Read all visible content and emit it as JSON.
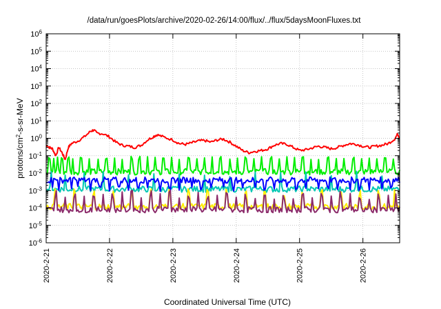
{
  "chart_data": {
    "type": "line",
    "title": "/data/run/goesPlots/archive/2020-02-26/14:00/flux/../flux/5daysMoonFluxes.txt",
    "xlabel": "Coordinated Universal Time (UTC)",
    "ylabel": "protons/cm²-s-sr-MeV",
    "ylabel_parts": {
      "pre": "protons/cm",
      "sup": "2",
      "post": "-s-sr-MeV"
    },
    "yscale": "log",
    "ylim_exponents": [
      -6,
      6
    ],
    "ytick_exponents": [
      6,
      5,
      4,
      3,
      2,
      1,
      0,
      -1,
      -2,
      -3,
      -4,
      -5,
      -6
    ],
    "ytick_base": "10",
    "xlim": [
      "2020-02-21",
      "2020-02-26 14:00"
    ],
    "xticks": [
      "2020-2-21",
      "2020-2-22",
      "2020-2-23",
      "2020-2-24",
      "2020-2-25",
      "2020-2-26"
    ],
    "grid": true,
    "series": [
      {
        "color": "#ff0000",
        "width": 2,
        "values": [
          [
            0,
            0.4
          ],
          [
            0.05,
            0.3
          ],
          [
            0.1,
            0.25
          ],
          [
            0.15,
            0.1
          ],
          [
            0.2,
            0.3
          ],
          [
            0.25,
            0.15
          ],
          [
            0.3,
            0.06
          ],
          [
            0.35,
            0.3
          ],
          [
            0.4,
            0.5
          ],
          [
            0.5,
            0.7
          ],
          [
            0.6,
            1.2
          ],
          [
            0.7,
            2.5
          ],
          [
            0.75,
            3.0
          ],
          [
            0.8,
            2.0
          ],
          [
            0.9,
            1.8
          ],
          [
            1.0,
            1.2
          ],
          [
            1.1,
            0.6
          ],
          [
            1.2,
            0.4
          ],
          [
            1.3,
            0.35
          ],
          [
            1.4,
            0.3
          ],
          [
            1.5,
            0.4
          ],
          [
            1.6,
            0.8
          ],
          [
            1.7,
            1.3
          ],
          [
            1.75,
            1.6
          ],
          [
            1.85,
            1.2
          ],
          [
            2.0,
            0.8
          ],
          [
            2.1,
            0.5
          ],
          [
            2.2,
            0.45
          ],
          [
            2.3,
            0.55
          ],
          [
            2.4,
            0.7
          ],
          [
            2.5,
            0.75
          ],
          [
            2.6,
            0.6
          ],
          [
            2.7,
            0.8
          ],
          [
            2.8,
            0.9
          ],
          [
            2.9,
            0.6
          ],
          [
            3.0,
            0.35
          ],
          [
            3.1,
            0.2
          ],
          [
            3.2,
            0.15
          ],
          [
            3.3,
            0.18
          ],
          [
            3.4,
            0.2
          ],
          [
            3.5,
            0.25
          ],
          [
            3.6,
            0.4
          ],
          [
            3.7,
            0.5
          ],
          [
            3.8,
            0.45
          ],
          [
            3.9,
            0.3
          ],
          [
            4.0,
            0.2
          ],
          [
            4.1,
            0.22
          ],
          [
            4.2,
            0.28
          ],
          [
            4.3,
            0.35
          ],
          [
            4.4,
            0.3
          ],
          [
            4.5,
            0.25
          ],
          [
            4.6,
            0.3
          ],
          [
            4.7,
            0.4
          ],
          [
            4.8,
            0.5
          ],
          [
            4.9,
            0.45
          ],
          [
            5.0,
            0.35
          ],
          [
            5.1,
            0.3
          ],
          [
            5.2,
            0.35
          ],
          [
            5.3,
            0.4
          ],
          [
            5.4,
            0.5
          ],
          [
            5.5,
            0.9
          ],
          [
            5.55,
            1.8
          ],
          [
            5.58,
            1.0
          ]
        ]
      },
      {
        "color": "#00ee00",
        "width": 2,
        "baseline": 0.012,
        "spikes": [
          0.05,
          0.12,
          0.18,
          0.25,
          0.35,
          0.42,
          0.55,
          0.68,
          0.82,
          0.95,
          1.08,
          1.2,
          1.35,
          1.47,
          1.6,
          1.72,
          1.85,
          1.98,
          2.1,
          2.25,
          2.38,
          2.5,
          2.62,
          2.75,
          2.9,
          3.02,
          3.15,
          3.28,
          3.4,
          3.55,
          3.68,
          3.8,
          3.92,
          4.05,
          4.18,
          4.3,
          4.45,
          4.58,
          4.7,
          4.85,
          4.98,
          5.1,
          5.22,
          5.35,
          5.48
        ],
        "spike": 0.06
      },
      {
        "color": "#00c8b4",
        "width": 2,
        "baseline": 0.0012,
        "spikes": [
          0.08,
          0.3,
          0.6,
          0.9,
          1.3,
          1.7,
          2.1,
          2.5,
          2.9,
          3.3,
          3.7,
          4.1,
          4.5,
          4.9,
          5.3
        ],
        "spike": 0.006
      },
      {
        "color": "#0000ff",
        "width": 2,
        "baseline": 0.004,
        "spikes": [
          0.1,
          0.2,
          0.4,
          0.5,
          0.7,
          0.85,
          1.0,
          1.15,
          1.3,
          1.45,
          1.6,
          1.8,
          1.95,
          2.1,
          2.3,
          2.45,
          2.6,
          2.8,
          2.95,
          3.1,
          3.3,
          3.45,
          3.6,
          3.8,
          3.95,
          4.1,
          4.3,
          4.45,
          4.6,
          4.8,
          4.95,
          5.1,
          5.3,
          5.45
        ],
        "spike": 0.002
      },
      {
        "color": "#ffee00",
        "width": 2,
        "baseline": 0.00012,
        "spikes": [
          0.15,
          0.45,
          0.75,
          1.05,
          1.35,
          1.65,
          1.95,
          2.25,
          2.55,
          2.85,
          3.15,
          3.45,
          3.75,
          4.05,
          4.35,
          4.65,
          4.95,
          5.25,
          5.5
        ],
        "spike": 0.0004
      },
      {
        "color": "#8b2a6a",
        "width": 2,
        "baseline": 8e-05,
        "spikes": [
          0.15,
          0.3,
          0.45,
          0.6,
          0.75,
          0.9,
          1.05,
          1.2,
          1.35,
          1.5,
          1.65,
          1.8,
          1.95,
          2.1,
          2.25,
          2.4,
          2.55,
          2.7,
          2.85,
          3.0,
          3.15,
          3.3,
          3.45,
          3.6,
          3.75,
          3.9,
          4.05,
          4.2,
          4.35,
          4.5,
          4.65,
          4.8,
          4.95,
          5.1,
          5.25,
          5.4,
          5.52
        ],
        "spike": 0.0003
      }
    ]
  }
}
